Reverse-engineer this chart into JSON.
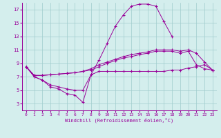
{
  "title": "",
  "xlabel": "Windchill (Refroidissement éolien,°C)",
  "ylabel": "",
  "bg_color": "#d4eeed",
  "grid_color": "#a0cccc",
  "line_color": "#990099",
  "xlim": [
    -0.5,
    23.5
  ],
  "ylim": [
    2,
    18
  ],
  "xticks": [
    0,
    1,
    2,
    3,
    4,
    5,
    6,
    7,
    8,
    9,
    10,
    11,
    12,
    13,
    14,
    15,
    16,
    17,
    18,
    19,
    20,
    21,
    22,
    23
  ],
  "yticks": [
    3,
    5,
    7,
    9,
    11,
    13,
    15,
    17
  ],
  "series": [
    {
      "x": [
        0,
        1,
        2,
        3,
        4,
        5,
        6,
        7,
        8,
        9,
        10,
        11,
        12,
        13,
        14,
        15,
        16,
        17,
        18
      ],
      "y": [
        8.5,
        7.0,
        6.5,
        5.5,
        5.2,
        4.5,
        4.3,
        3.2,
        7.3,
        9.5,
        12.0,
        14.5,
        16.2,
        17.5,
        17.8,
        17.8,
        17.5,
        15.2,
        13.0
      ]
    },
    {
      "x": [
        0,
        1,
        2,
        3,
        4,
        5,
        6,
        7,
        8,
        9,
        10,
        11,
        12,
        13,
        14,
        15,
        16,
        17,
        18,
        19,
        20,
        21,
        22,
        23
      ],
      "y": [
        8.5,
        7.2,
        7.2,
        7.3,
        7.4,
        7.5,
        7.6,
        7.8,
        8.2,
        8.8,
        9.2,
        9.6,
        10.0,
        10.3,
        10.5,
        10.7,
        11.0,
        11.0,
        11.0,
        10.8,
        11.0,
        10.5,
        9.2,
        8.0
      ]
    },
    {
      "x": [
        0,
        1,
        2,
        3,
        4,
        5,
        6,
        7,
        8,
        9,
        10,
        11,
        12,
        13,
        14,
        15,
        16,
        17,
        18,
        19,
        20,
        21,
        22,
        23
      ],
      "y": [
        8.5,
        7.2,
        7.2,
        7.3,
        7.4,
        7.5,
        7.6,
        7.8,
        8.0,
        8.5,
        9.0,
        9.4,
        9.8,
        10.0,
        10.3,
        10.5,
        10.8,
        10.8,
        10.8,
        10.5,
        10.8,
        8.8,
        8.2,
        8.0
      ]
    },
    {
      "x": [
        0,
        1,
        2,
        3,
        4,
        5,
        6,
        7,
        8,
        9,
        10,
        11,
        12,
        13,
        14,
        15,
        16,
        17,
        18,
        19,
        20,
        21,
        22,
        23
      ],
      "y": [
        8.5,
        7.0,
        6.5,
        5.8,
        5.5,
        5.2,
        5.0,
        5.0,
        7.3,
        7.8,
        7.8,
        7.8,
        7.8,
        7.8,
        7.8,
        7.8,
        7.8,
        7.8,
        8.0,
        8.0,
        8.3,
        8.5,
        8.8,
        8.0
      ]
    }
  ]
}
